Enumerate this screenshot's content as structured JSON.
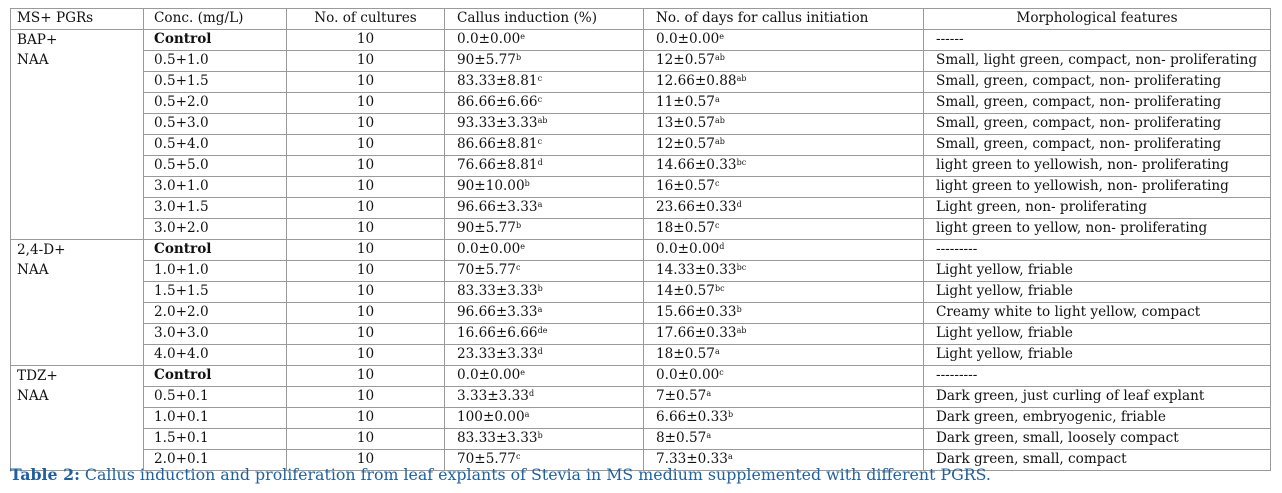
{
  "table": {
    "headers": [
      "MS+ PGRs",
      "Conc. (mg/L)",
      "No. of cultures",
      "Callus induction (%)",
      "No. of days for callus initiation",
      "Morphological features"
    ],
    "groups": [
      {
        "name_line1": "BAP+",
        "name_line2": "NAA",
        "rows": [
          {
            "conc": "Control",
            "cultures": "10",
            "callus": "0.0±0.00",
            "callus_sup": "e",
            "days": "0.0±0.00",
            "days_sup": "e",
            "features": "------"
          },
          {
            "conc": "0.5+1.0",
            "cultures": "10",
            "callus": "90±5.77",
            "callus_sup": "b",
            "days": "12±0.57",
            "days_sup": "ab",
            "features": "Small, light green, compact, non- proliferating"
          },
          {
            "conc": "0.5+1.5",
            "cultures": "10",
            "callus": "83.33±8.81",
            "callus_sup": "c",
            "days": "12.66±0.88",
            "days_sup": "ab",
            "features": "Small, green, compact, non- proliferating"
          },
          {
            "conc": "0.5+2.0",
            "cultures": "10",
            "callus": "86.66±6.66",
            "callus_sup": "c",
            "days": "11±0.57",
            "days_sup": "a",
            "features": "Small, green, compact, non- proliferating"
          },
          {
            "conc": "0.5+3.0",
            "cultures": "10",
            "callus": "93.33±3.33",
            "callus_sup": "ab",
            "days": "13±0.57",
            "days_sup": "ab",
            "features": "Small, green, compact, non- proliferating"
          },
          {
            "conc": "0.5+4.0",
            "cultures": "10",
            "callus": "86.66±8.81",
            "callus_sup": "c",
            "days": "12±0.57",
            "days_sup": "ab",
            "features": "Small, green, compact, non- proliferating"
          },
          {
            "conc": "0.5+5.0",
            "cultures": "10",
            "callus": "76.66±8.81",
            "callus_sup": "d",
            "days": "14.66±0.33",
            "days_sup": "bc",
            "features": "light green to yellowish, non- proliferating"
          },
          {
            "conc": "3.0+1.0",
            "cultures": "10",
            "callus": "90±10.00",
            "callus_sup": "b",
            "days": "16±0.57",
            "days_sup": "c",
            "features": "light green to yellowish, non- proliferating"
          },
          {
            "conc": "3.0+1.5",
            "cultures": "10",
            "callus": "96.66±3.33",
            "callus_sup": "a",
            "days": "23.66±0.33",
            "days_sup": "d",
            "features": "Light green, non- proliferating"
          },
          {
            "conc": "3.0+2.0",
            "cultures": "10",
            "callus": "90±5.77",
            "callus_sup": "b",
            "days": "18±0.57",
            "days_sup": "c",
            "features": "light green to yellow, non- proliferating"
          }
        ]
      },
      {
        "name_line1": "2,4-D+",
        "name_line2": "NAA",
        "rows": [
          {
            "conc": "Control",
            "cultures": "10",
            "callus": "0.0±0.00",
            "callus_sup": "e",
            "days": "0.0±0.00",
            "days_sup": "d",
            "features": "---------"
          },
          {
            "conc": "1.0+1.0",
            "cultures": "10",
            "callus": "70±5.77",
            "callus_sup": "c",
            "days": "14.33±0.33",
            "days_sup": "bc",
            "features": "Light yellow, friable"
          },
          {
            "conc": "1.5+1.5",
            "cultures": "10",
            "callus": "83.33±3.33",
            "callus_sup": "b",
            "days": "14±0.57",
            "days_sup": "bc",
            "features": "Light yellow, friable"
          },
          {
            "conc": "2.0+2.0",
            "cultures": "10",
            "callus": "96.66±3.33",
            "callus_sup": "a",
            "days": "15.66±0.33",
            "days_sup": "b",
            "features": "Creamy white to light yellow, compact"
          },
          {
            "conc": "3.0+3.0",
            "cultures": "10",
            "callus": "16.66±6.66",
            "callus_sup": "de",
            "days": "17.66±0.33",
            "days_sup": "ab",
            "features": "Light yellow, friable"
          },
          {
            "conc": "4.0+4.0",
            "cultures": "10",
            "callus": "23.33±3.33",
            "callus_sup": "d",
            "days": "18±0.57",
            "days_sup": "a",
            "features": "Light yellow, friable"
          }
        ]
      },
      {
        "name_line1": "TDZ+",
        "name_line2": "NAA",
        "rows": [
          {
            "conc": "Control",
            "cultures": "10",
            "callus": "0.0±0.00",
            "callus_sup": "e",
            "days": "0.0±0.00",
            "days_sup": "c",
            "features": "---------"
          },
          {
            "conc": "0.5+0.1",
            "cultures": "10",
            "callus": "3.33±3.33",
            "callus_sup": "d",
            "days": "7±0.57",
            "days_sup": "a",
            "features": "Dark green, just curling of leaf explant"
          },
          {
            "conc": "1.0+0.1",
            "cultures": "10",
            "callus": "100±0.00",
            "callus_sup": "a",
            "days": "6.66±0.33",
            "days_sup": "b",
            "features": "Dark green, embryogenic, friable"
          },
          {
            "conc": "1.5+0.1",
            "cultures": "10",
            "callus": "83.33±3.33",
            "callus_sup": "b",
            "days": "8±0.57",
            "days_sup": "a",
            "features": "Dark green, small, loosely compact"
          },
          {
            "conc": "2.0+0.1",
            "cultures": "10",
            "callus": "70±5.77",
            "callus_sup": "c",
            "days": "7.33±0.33",
            "days_sup": "a",
            "features": "Dark green, small, compact"
          }
        ]
      }
    ]
  },
  "caption": {
    "label": "Table 2:",
    "text": " Callus induction and proliferation from leaf explants of Stevia in MS medium supplemented with different PGRS."
  }
}
